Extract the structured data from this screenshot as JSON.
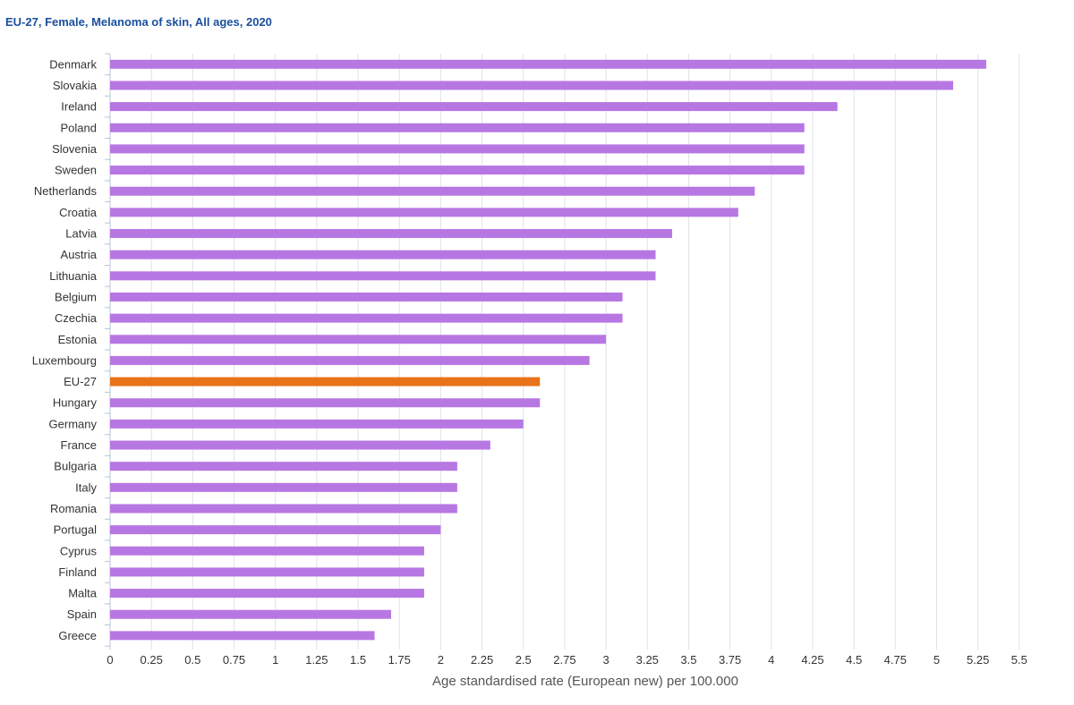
{
  "chart_data": {
    "type": "bar",
    "orientation": "horizontal",
    "title": "EU-27, Female, Melanoma of skin, All ages, 2020",
    "xlabel": "Age standardised rate (European new) per 100.000",
    "ylabel": "",
    "xlim": [
      0,
      5.5
    ],
    "x_ticks": [
      "0",
      "0.25",
      "0.5",
      "0.75",
      "1",
      "1.25",
      "1.5",
      "1.75",
      "2",
      "2.25",
      "2.5",
      "2.75",
      "3",
      "3.25",
      "3.5",
      "3.75",
      "4",
      "4.25",
      "4.5",
      "4.75",
      "5",
      "5.25",
      "5.5"
    ],
    "grid": "vertical",
    "categories": [
      "Denmark",
      "Slovakia",
      "Ireland",
      "Poland",
      "Slovenia",
      "Sweden",
      "Netherlands",
      "Croatia",
      "Latvia",
      "Austria",
      "Lithuania",
      "Belgium",
      "Czechia",
      "Estonia",
      "Luxembourg",
      "EU-27",
      "Hungary",
      "Germany",
      "France",
      "Bulgaria",
      "Italy",
      "Romania",
      "Portugal",
      "Cyprus",
      "Finland",
      "Malta",
      "Spain",
      "Greece"
    ],
    "values": [
      5.3,
      5.1,
      4.4,
      4.2,
      4.2,
      4.2,
      3.9,
      3.8,
      3.4,
      3.3,
      3.3,
      3.1,
      3.1,
      3.0,
      2.9,
      2.6,
      2.6,
      2.5,
      2.3,
      2.1,
      2.1,
      2.1,
      2.0,
      1.9,
      1.9,
      1.9,
      1.7,
      1.6
    ],
    "highlight": "EU-27",
    "colors": {
      "bar": "#b777e3",
      "highlight": "#e8731a",
      "title": "#1a4f9c"
    }
  }
}
